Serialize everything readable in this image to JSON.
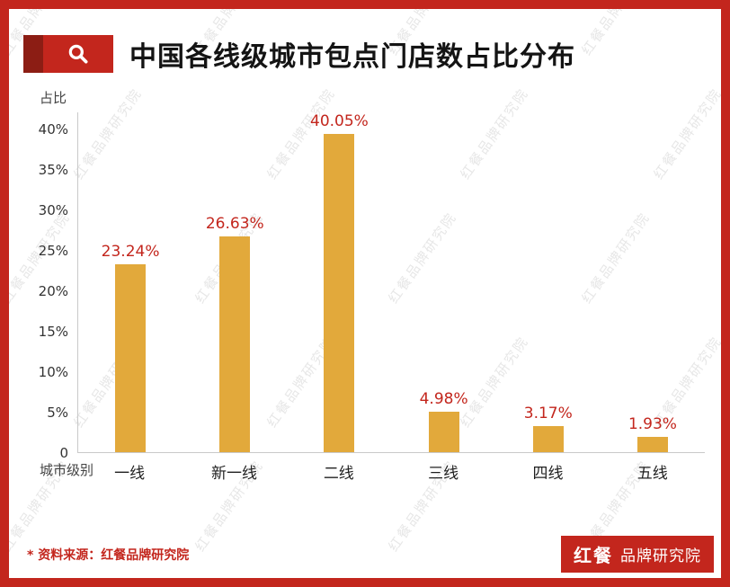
{
  "header": {
    "title": "中国各线级城市包点门店数占比分布",
    "icon": "magnifier-icon"
  },
  "chart_data": {
    "type": "bar",
    "title": "中国各线级城市包点门店数占比分布",
    "x_axis_title": "城市级别",
    "y_axis_title": "占比",
    "categories": [
      "一线",
      "新一线",
      "二线",
      "三线",
      "四线",
      "五线"
    ],
    "values": [
      23.24,
      26.63,
      40.05,
      4.98,
      3.17,
      1.93
    ],
    "value_labels": [
      "23.24%",
      "26.63%",
      "40.05%",
      "4.98%",
      "3.17%",
      "1.93%"
    ],
    "y_ticks": [
      "0",
      "5%",
      "10%",
      "15%",
      "20%",
      "25%",
      "30%",
      "35%",
      "40%"
    ],
    "y_tick_values": [
      0,
      5,
      10,
      15,
      20,
      25,
      30,
      35,
      40
    ],
    "ylim": [
      0,
      42
    ],
    "grid": false,
    "legend": "none",
    "bar_color": "#e2a93b",
    "label_color": "#c3261d"
  },
  "watermark": {
    "text": "红餐品牌研究院"
  },
  "footer": {
    "source": "* 资料来源：红餐品牌研究院",
    "logo_primary": "红餐",
    "logo_secondary": "品牌研究院"
  },
  "colors": {
    "frame_red": "#c3261d",
    "dark_red": "#8c1d14",
    "bar_gold": "#e2a93b"
  }
}
